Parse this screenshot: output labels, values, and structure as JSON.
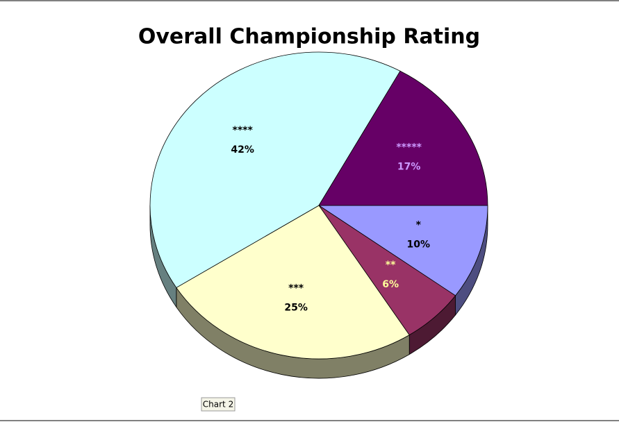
{
  "chart_data": {
    "type": "pie",
    "title": "Overall Championship Rating",
    "categories": [
      "*",
      "**",
      "***",
      "****",
      "*****"
    ],
    "values": [
      10,
      6,
      25,
      42,
      17
    ],
    "value_labels": [
      "10%",
      "6%",
      "25%",
      "42%",
      "17%"
    ],
    "colors": [
      "#9999ff",
      "#993366",
      "#ffffcc",
      "#ccffff",
      "#660066"
    ],
    "label_colors": [
      "#000000",
      "#ffff99",
      "#000000",
      "#000000",
      "#cc99ff"
    ]
  },
  "sheet_tab": "Chart 2"
}
